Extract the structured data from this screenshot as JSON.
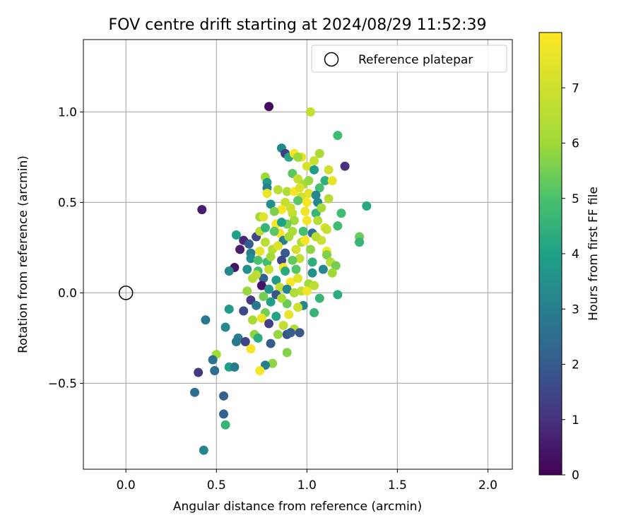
{
  "chart_data": {
    "type": "scatter",
    "title": "FOV centre drift starting at 2024/08/29 11:52:39",
    "xlabel": "Angular distance from reference (arcmin)",
    "ylabel": "Rotation from reference (arcmin)",
    "xlim": [
      -0.235,
      2.135
    ],
    "ylim": [
      -0.975,
      1.4
    ],
    "xticks": [
      0.0,
      0.5,
      1.0,
      1.5,
      2.0
    ],
    "xtick_labels": [
      "0.0",
      "0.5",
      "1.0",
      "1.5",
      "2.0"
    ],
    "yticks": [
      -0.5,
      0.0,
      0.5,
      1.0
    ],
    "ytick_labels": [
      "−0.5",
      "0.0",
      "0.5",
      "1.0"
    ],
    "grid": true,
    "legend": {
      "position": "top-right",
      "label": "Reference platepar"
    },
    "reference_point": {
      "x": 0.0,
      "y": 0.0
    },
    "colorbar": {
      "label": "Hours from first FF file",
      "range": [
        0,
        8
      ],
      "ticks": [
        0,
        1,
        2,
        3,
        4,
        5,
        6,
        7
      ],
      "tick_labels": [
        "0",
        "1",
        "2",
        "3",
        "4",
        "5",
        "6",
        "7"
      ],
      "colormap": "viridis"
    },
    "points": [
      {
        "x": 0.79,
        "y": 1.03,
        "h": 0.2
      },
      {
        "x": 1.02,
        "y": 1.0,
        "h": 6.8
      },
      {
        "x": 1.17,
        "y": 0.87,
        "h": 4.8
      },
      {
        "x": 0.86,
        "y": 0.8,
        "h": 3.3
      },
      {
        "x": 0.88,
        "y": 0.77,
        "h": 1.3
      },
      {
        "x": 0.9,
        "y": 0.75,
        "h": 4.2
      },
      {
        "x": 0.93,
        "y": 0.77,
        "h": 7.8
      },
      {
        "x": 0.97,
        "y": 0.75,
        "h": 7.5
      },
      {
        "x": 1.07,
        "y": 0.77,
        "h": 6.2
      },
      {
        "x": 1.04,
        "y": 0.73,
        "h": 6.8
      },
      {
        "x": 1.21,
        "y": 0.7,
        "h": 1.0
      },
      {
        "x": 0.95,
        "y": 0.75,
        "h": 6.0
      },
      {
        "x": 1.0,
        "y": 0.7,
        "h": 7.2
      },
      {
        "x": 1.12,
        "y": 0.68,
        "h": 7.0
      },
      {
        "x": 0.92,
        "y": 0.66,
        "h": 5.2
      },
      {
        "x": 1.04,
        "y": 0.68,
        "h": 3.9
      },
      {
        "x": 0.77,
        "y": 0.64,
        "h": 6.0
      },
      {
        "x": 0.78,
        "y": 0.61,
        "h": 3.8
      },
      {
        "x": 0.95,
        "y": 0.63,
        "h": 6.8
      },
      {
        "x": 0.98,
        "y": 0.6,
        "h": 6.3
      },
      {
        "x": 1.1,
        "y": 0.62,
        "h": 4.4
      },
      {
        "x": 1.14,
        "y": 0.62,
        "h": 7.6
      },
      {
        "x": 0.78,
        "y": 0.58,
        "h": 3.0
      },
      {
        "x": 0.89,
        "y": 0.56,
        "h": 6.3
      },
      {
        "x": 0.93,
        "y": 0.56,
        "h": 7.9
      },
      {
        "x": 1.01,
        "y": 0.55,
        "h": 7.4
      },
      {
        "x": 1.07,
        "y": 0.58,
        "h": 4.9
      },
      {
        "x": 0.78,
        "y": 0.55,
        "h": 7.6
      },
      {
        "x": 0.84,
        "y": 0.57,
        "h": 6.6
      },
      {
        "x": 0.97,
        "y": 0.53,
        "h": 7.0
      },
      {
        "x": 1.05,
        "y": 0.54,
        "h": 3.2
      },
      {
        "x": 1.12,
        "y": 0.52,
        "h": 6.5
      },
      {
        "x": 0.42,
        "y": 0.46,
        "h": 0.6
      },
      {
        "x": 0.8,
        "y": 0.49,
        "h": 3.5
      },
      {
        "x": 0.88,
        "y": 0.5,
        "h": 6.8
      },
      {
        "x": 0.95,
        "y": 0.51,
        "h": 5.2
      },
      {
        "x": 1.0,
        "y": 0.5,
        "h": 7.8
      },
      {
        "x": 1.06,
        "y": 0.5,
        "h": 3.2
      },
      {
        "x": 1.19,
        "y": 0.44,
        "h": 4.8
      },
      {
        "x": 1.33,
        "y": 0.48,
        "h": 4.2
      },
      {
        "x": 0.86,
        "y": 0.46,
        "h": 7.9
      },
      {
        "x": 0.92,
        "y": 0.44,
        "h": 6.7
      },
      {
        "x": 1.05,
        "y": 0.44,
        "h": 4.6
      },
      {
        "x": 0.74,
        "y": 0.42,
        "h": 6.0
      },
      {
        "x": 0.76,
        "y": 0.42,
        "h": 7.4
      },
      {
        "x": 0.93,
        "y": 0.4,
        "h": 6.0
      },
      {
        "x": 0.83,
        "y": 0.38,
        "h": 7.8
      },
      {
        "x": 0.89,
        "y": 0.38,
        "h": 5.5
      },
      {
        "x": 1.0,
        "y": 0.4,
        "h": 7.8
      },
      {
        "x": 1.1,
        "y": 0.36,
        "h": 7.2
      },
      {
        "x": 1.17,
        "y": 0.37,
        "h": 4.8
      },
      {
        "x": 0.61,
        "y": 0.32,
        "h": 4.0
      },
      {
        "x": 0.72,
        "y": 0.31,
        "h": 1.5
      },
      {
        "x": 0.74,
        "y": 0.34,
        "h": 6.6
      },
      {
        "x": 0.85,
        "y": 0.33,
        "h": 7.8
      },
      {
        "x": 0.92,
        "y": 0.34,
        "h": 6.3
      },
      {
        "x": 1.03,
        "y": 0.33,
        "h": 2.5
      },
      {
        "x": 1.11,
        "y": 0.35,
        "h": 6.8
      },
      {
        "x": 0.65,
        "y": 0.29,
        "h": 0.8
      },
      {
        "x": 0.68,
        "y": 0.27,
        "h": 2.0
      },
      {
        "x": 0.77,
        "y": 0.28,
        "h": 6.6
      },
      {
        "x": 0.87,
        "y": 0.29,
        "h": 3.0
      },
      {
        "x": 0.97,
        "y": 0.28,
        "h": 6.3
      },
      {
        "x": 1.08,
        "y": 0.29,
        "h": 6.9
      },
      {
        "x": 1.29,
        "y": 0.31,
        "h": 5.4
      },
      {
        "x": 1.29,
        "y": 0.28,
        "h": 4.6
      },
      {
        "x": 0.63,
        "y": 0.24,
        "h": 0.6
      },
      {
        "x": 0.69,
        "y": 0.22,
        "h": 3.0
      },
      {
        "x": 0.74,
        "y": 0.23,
        "h": 7.5
      },
      {
        "x": 0.81,
        "y": 0.24,
        "h": 6.5
      },
      {
        "x": 0.88,
        "y": 0.22,
        "h": 2.0
      },
      {
        "x": 1.11,
        "y": 0.23,
        "h": 7.7
      },
      {
        "x": 1.11,
        "y": 0.21,
        "h": 5.6
      },
      {
        "x": 0.69,
        "y": 0.19,
        "h": 3.5
      },
      {
        "x": 0.78,
        "y": 0.17,
        "h": 4.8
      },
      {
        "x": 0.86,
        "y": 0.18,
        "h": 1.5
      },
      {
        "x": 0.96,
        "y": 0.19,
        "h": 6.7
      },
      {
        "x": 1.03,
        "y": 0.17,
        "h": 4.4
      },
      {
        "x": 1.13,
        "y": 0.17,
        "h": 6.5
      },
      {
        "x": 0.6,
        "y": 0.14,
        "h": 0.4
      },
      {
        "x": 0.57,
        "y": 0.12,
        "h": 3.3
      },
      {
        "x": 0.67,
        "y": 0.13,
        "h": 3.5
      },
      {
        "x": 0.73,
        "y": 0.12,
        "h": 4.9
      },
      {
        "x": 0.79,
        "y": 0.13,
        "h": 6.9
      },
      {
        "x": 0.87,
        "y": 0.14,
        "h": 7.8
      },
      {
        "x": 0.94,
        "y": 0.13,
        "h": 5.1
      },
      {
        "x": 1.03,
        "y": 0.11,
        "h": 3.5
      },
      {
        "x": 1.16,
        "y": 0.15,
        "h": 5.5
      },
      {
        "x": 1.09,
        "y": 0.13,
        "h": 3.2
      },
      {
        "x": 1.14,
        "y": 0.11,
        "h": 6.0
      },
      {
        "x": 0.7,
        "y": 0.08,
        "h": 6.5
      },
      {
        "x": 0.76,
        "y": 0.08,
        "h": 2.2
      },
      {
        "x": 0.83,
        "y": 0.07,
        "h": 3.8
      },
      {
        "x": 0.91,
        "y": 0.06,
        "h": 7.9
      },
      {
        "x": 1.01,
        "y": 0.05,
        "h": 6.0
      },
      {
        "x": 1.04,
        "y": 0.04,
        "h": 6.6
      },
      {
        "x": 0.75,
        "y": 0.04,
        "h": 0.4
      },
      {
        "x": 0.79,
        "y": 0.02,
        "h": 3.7
      },
      {
        "x": 0.85,
        "y": 0.03,
        "h": 6.7
      },
      {
        "x": 0.89,
        "y": 0.02,
        "h": 3.2
      },
      {
        "x": 0.97,
        "y": 0.01,
        "h": 6.7
      },
      {
        "x": 0.67,
        "y": 0.01,
        "h": 5.9
      },
      {
        "x": 0.76,
        "y": -0.02,
        "h": 5.5
      },
      {
        "x": 0.83,
        "y": -0.01,
        "h": 1.8
      },
      {
        "x": 0.93,
        "y": 0.0,
        "h": 6.3
      },
      {
        "x": 1.0,
        "y": 0.01,
        "h": 7.7
      },
      {
        "x": 1.07,
        "y": -0.03,
        "h": 4.6
      },
      {
        "x": 1.17,
        "y": -0.01,
        "h": 4.3
      },
      {
        "x": 0.69,
        "y": -0.04,
        "h": 1.2
      },
      {
        "x": 0.72,
        "y": -0.07,
        "h": 2.8
      },
      {
        "x": 0.8,
        "y": -0.05,
        "h": 3.9
      },
      {
        "x": 0.89,
        "y": -0.06,
        "h": 5.4
      },
      {
        "x": 0.98,
        "y": -0.07,
        "h": 3.2
      },
      {
        "x": 0.57,
        "y": -0.09,
        "h": 3.8
      },
      {
        "x": 0.65,
        "y": -0.1,
        "h": 1.6
      },
      {
        "x": 0.77,
        "y": -0.11,
        "h": 5.5
      },
      {
        "x": 0.9,
        "y": -0.12,
        "h": 7.6
      },
      {
        "x": 1.04,
        "y": -0.11,
        "h": 4.6
      },
      {
        "x": 0.7,
        "y": -0.15,
        "h": 6.2
      },
      {
        "x": 0.75,
        "y": -0.14,
        "h": 7.6
      },
      {
        "x": 0.79,
        "y": -0.17,
        "h": 1.3
      },
      {
        "x": 0.87,
        "y": -0.18,
        "h": 6.7
      },
      {
        "x": 0.93,
        "y": -0.2,
        "h": 6.4
      },
      {
        "x": 0.44,
        "y": -0.15,
        "h": 2.8
      },
      {
        "x": 0.55,
        "y": -0.19,
        "h": 3.3
      },
      {
        "x": 0.89,
        "y": -0.23,
        "h": 1.8
      },
      {
        "x": 0.91,
        "y": -0.22,
        "h": 2.1
      },
      {
        "x": 0.96,
        "y": -0.22,
        "h": 1.9
      },
      {
        "x": 0.71,
        "y": -0.23,
        "h": 5.8
      },
      {
        "x": 0.73,
        "y": -0.25,
        "h": 4.3
      },
      {
        "x": 0.84,
        "y": -0.23,
        "h": 5.9
      },
      {
        "x": 0.62,
        "y": -0.25,
        "h": 3.0
      },
      {
        "x": 0.61,
        "y": -0.27,
        "h": 2.8
      },
      {
        "x": 0.66,
        "y": -0.27,
        "h": 1.4
      },
      {
        "x": 0.8,
        "y": -0.28,
        "h": 2.0
      },
      {
        "x": 0.69,
        "y": -0.31,
        "h": 7.9
      },
      {
        "x": 0.5,
        "y": -0.34,
        "h": 6.1
      },
      {
        "x": 0.89,
        "y": -0.33,
        "h": 5.7
      },
      {
        "x": 0.48,
        "y": -0.37,
        "h": 2.6
      },
      {
        "x": 0.81,
        "y": -0.39,
        "h": 5.8
      },
      {
        "x": 0.77,
        "y": -0.4,
        "h": 3.0
      },
      {
        "x": 0.57,
        "y": -0.41,
        "h": 4.0
      },
      {
        "x": 0.6,
        "y": -0.41,
        "h": 2.9
      },
      {
        "x": 0.74,
        "y": -0.43,
        "h": 7.8
      },
      {
        "x": 0.49,
        "y": -0.43,
        "h": 2.5
      },
      {
        "x": 0.4,
        "y": -0.44,
        "h": 1.2
      },
      {
        "x": 0.38,
        "y": -0.55,
        "h": 2.5
      },
      {
        "x": 0.54,
        "y": -0.57,
        "h": 2.2
      },
      {
        "x": 0.54,
        "y": -0.67,
        "h": 2.2
      },
      {
        "x": 0.55,
        "y": -0.73,
        "h": 4.6
      },
      {
        "x": 0.43,
        "y": -0.87,
        "h": 3.2
      },
      {
        "x": 0.82,
        "y": 0.45,
        "h": 5.6
      },
      {
        "x": 0.86,
        "y": 0.39,
        "h": 4.0
      },
      {
        "x": 0.9,
        "y": 0.31,
        "h": 6.2
      },
      {
        "x": 0.94,
        "y": 0.24,
        "h": 7.1
      },
      {
        "x": 0.98,
        "y": 0.34,
        "h": 4.9
      },
      {
        "x": 0.84,
        "y": 0.26,
        "h": 7.3
      },
      {
        "x": 0.8,
        "y": 0.2,
        "h": 6.1
      },
      {
        "x": 0.88,
        "y": 0.12,
        "h": 4.3
      },
      {
        "x": 0.95,
        "y": 0.08,
        "h": 7.4
      },
      {
        "x": 1.02,
        "y": 0.24,
        "h": 5.8
      },
      {
        "x": 1.06,
        "y": 0.4,
        "h": 6.4
      },
      {
        "x": 0.99,
        "y": 0.45,
        "h": 7.7
      },
      {
        "x": 0.91,
        "y": 0.47,
        "h": 6.9
      },
      {
        "x": 0.96,
        "y": 0.58,
        "h": 7.3
      },
      {
        "x": 1.01,
        "y": 0.62,
        "h": 5.9
      },
      {
        "x": 1.08,
        "y": 0.47,
        "h": 6.1
      },
      {
        "x": 0.82,
        "y": 0.34,
        "h": 5.2
      },
      {
        "x": 0.77,
        "y": 0.36,
        "h": 4.5
      },
      {
        "x": 0.73,
        "y": 0.18,
        "h": 5.0
      },
      {
        "x": 0.72,
        "y": 0.1,
        "h": 6.6
      },
      {
        "x": 0.86,
        "y": -0.03,
        "h": 6.3
      },
      {
        "x": 0.95,
        "y": -0.08,
        "h": 7.0
      },
      {
        "x": 0.83,
        "y": -0.13,
        "h": 4.1
      },
      {
        "x": 0.99,
        "y": 0.29,
        "h": 7.9
      },
      {
        "x": 1.05,
        "y": 0.31,
        "h": 6.6
      },
      {
        "x": 0.92,
        "y": 0.18,
        "h": 5.3
      }
    ]
  }
}
